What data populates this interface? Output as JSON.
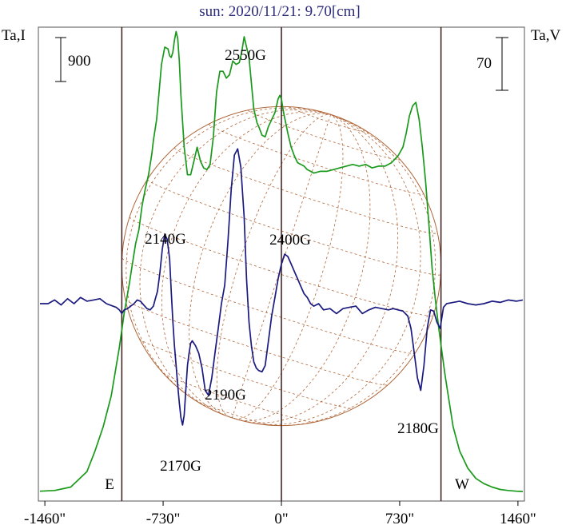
{
  "chart_data": {
    "type": "line",
    "title": "sun: 2020/11/21: 9.70[cm]",
    "ylabel_left": "Ta,I",
    "ylabel_right": "Ta,V",
    "scale_left": "900",
    "scale_right": "70",
    "xlim": [
      -1500,
      1500
    ],
    "x_ticks": [
      {
        "value": -1460,
        "label": "-1460\""
      },
      {
        "value": -730,
        "label": "-730\""
      },
      {
        "value": 0,
        "label": "0\""
      },
      {
        "value": 730,
        "label": "730\""
      },
      {
        "value": 1460,
        "label": "1460\""
      }
    ],
    "limb_labels": [
      {
        "x": -985,
        "text": "E"
      },
      {
        "x": 985,
        "text": "W"
      }
    ],
    "vertical_lines": [
      -985,
      0,
      985
    ],
    "solar_radius_arcsec": 985,
    "annotations": [
      {
        "x": -700,
        "text": "2140G"
      },
      {
        "x": -610,
        "text": "2170G"
      },
      {
        "x": -330,
        "text": "2190G"
      },
      {
        "x": -210,
        "text": "2550G"
      },
      {
        "x": 50,
        "text": "2400G"
      },
      {
        "x": 830,
        "text": "2180G"
      }
    ],
    "series": [
      {
        "color": "#1a9a1a",
        "x": [
          -1490,
          -1400,
          -1300,
          -1200,
          -1150,
          -1100,
          -1050,
          -1000,
          -970,
          -940,
          -920,
          -900,
          -880,
          -860,
          -840,
          -820,
          -800,
          -790,
          -770,
          -755,
          -740,
          -720,
          -700,
          -690,
          -680,
          -670,
          -660,
          -650,
          -640,
          -630,
          -620,
          -600,
          -580,
          -560,
          -540,
          -520,
          -500,
          -480,
          -460,
          -440,
          -420,
          -400,
          -380,
          -360,
          -340,
          -320,
          -300,
          -280,
          -260,
          -245,
          -230,
          -220,
          -200,
          -190,
          -180,
          -170,
          -160,
          -150,
          -140,
          -120,
          -100,
          -80,
          -60,
          -40,
          -20,
          -10,
          0,
          10,
          20,
          40,
          60,
          80,
          100,
          120,
          140,
          160,
          180,
          200,
          240,
          280,
          320,
          360,
          400,
          440,
          480,
          520,
          560,
          600,
          640,
          680,
          720,
          750,
          770,
          790,
          810,
          830,
          850,
          870,
          890,
          910,
          930,
          950,
          970,
          990,
          1010,
          1030,
          1060,
          1100,
          1150,
          1200,
          1250,
          1300,
          1350,
          1400,
          1450,
          1490
        ],
        "values": [
          3,
          5,
          15,
          60,
          120,
          190,
          280,
          420,
          520,
          600,
          660,
          720,
          760,
          830,
          880,
          920,
          980,
          1020,
          1080,
          1160,
          1240,
          1290,
          1285,
          1265,
          1260,
          1275,
          1310,
          1335,
          1315,
          1250,
          1150,
          1000,
          920,
          920,
          960,
          1000,
          960,
          940,
          935,
          950,
          1030,
          1160,
          1220,
          1220,
          1200,
          1210,
          1250,
          1240,
          1245,
          1275,
          1320,
          1300,
          1260,
          1210,
          1160,
          1110,
          1090,
          1070,
          1060,
          1035,
          1030,
          1060,
          1080,
          1100,
          1140,
          1150,
          1140,
          1110,
          1085,
          1040,
          1000,
          975,
          955,
          950,
          945,
          935,
          930,
          925,
          930,
          930,
          935,
          940,
          945,
          950,
          945,
          950,
          940,
          945,
          945,
          955,
          975,
          1000,
          1040,
          1090,
          1120,
          1130,
          1080,
          1000,
          900,
          780,
          650,
          560,
          480,
          410,
          340,
          280,
          190,
          120,
          70,
          40,
          25,
          15,
          8,
          5,
          3,
          2
        ]
      },
      {
        "color": "#1a1a80",
        "x": [
          -1490,
          -1440,
          -1400,
          -1360,
          -1320,
          -1280,
          -1240,
          -1200,
          -1160,
          -1120,
          -1080,
          -1040,
          -1020,
          -1000,
          -985,
          -970,
          -950,
          -930,
          -910,
          -890,
          -870,
          -850,
          -830,
          -810,
          -790,
          -780,
          -765,
          -750,
          -735,
          -720,
          -705,
          -690,
          -680,
          -670,
          -660,
          -650,
          -640,
          -630,
          -620,
          -610,
          -600,
          -590,
          -580,
          -570,
          -560,
          -550,
          -530,
          -510,
          -490,
          -470,
          -450,
          -430,
          -410,
          -390,
          -370,
          -350,
          -330,
          -310,
          -290,
          -270,
          -250,
          -230,
          -215,
          -200,
          -185,
          -170,
          -155,
          -140,
          -120,
          -100,
          -80,
          -60,
          -40,
          -20,
          0,
          20,
          40,
          60,
          80,
          100,
          120,
          140,
          160,
          180,
          200,
          230,
          260,
          300,
          340,
          380,
          420,
          460,
          500,
          540,
          580,
          620,
          660,
          690,
          720,
          750,
          780,
          800,
          820,
          840,
          860,
          880,
          900,
          920,
          940,
          960,
          980,
          1000,
          1020,
          1060,
          1100,
          1150,
          1200,
          1250,
          1300,
          1350,
          1400,
          1450,
          1490
        ],
        "values": [
          0,
          0,
          3,
          -1,
          4,
          0,
          5,
          2,
          3,
          4,
          0,
          -2,
          -3,
          -5,
          -8,
          -5,
          -4,
          -2,
          0,
          3,
          2,
          -1,
          -4,
          -5,
          -2,
          3,
          10,
          25,
          44,
          56,
          52,
          36,
          10,
          -14,
          -34,
          -50,
          -66,
          -80,
          -92,
          -98,
          -90,
          -70,
          -50,
          -40,
          -32,
          -30,
          -34,
          -40,
          -52,
          -70,
          -74,
          -60,
          -40,
          -20,
          0,
          15,
          50,
          92,
          120,
          125,
          110,
          70,
          20,
          -15,
          -34,
          -47,
          -52,
          -54,
          -55,
          -50,
          -30,
          -10,
          5,
          20,
          32,
          40,
          38,
          32,
          26,
          20,
          14,
          8,
          5,
          0,
          -2,
          0,
          -5,
          -4,
          -8,
          -4,
          -3,
          -2,
          -8,
          -5,
          -3,
          -4,
          -5,
          -4,
          -5,
          -6,
          -10,
          -20,
          -40,
          -60,
          -70,
          -50,
          -20,
          -5,
          -6,
          -15,
          -20,
          -3,
          0,
          1,
          2,
          0,
          -1,
          0,
          2,
          1,
          3,
          2,
          3
        ]
      }
    ]
  }
}
